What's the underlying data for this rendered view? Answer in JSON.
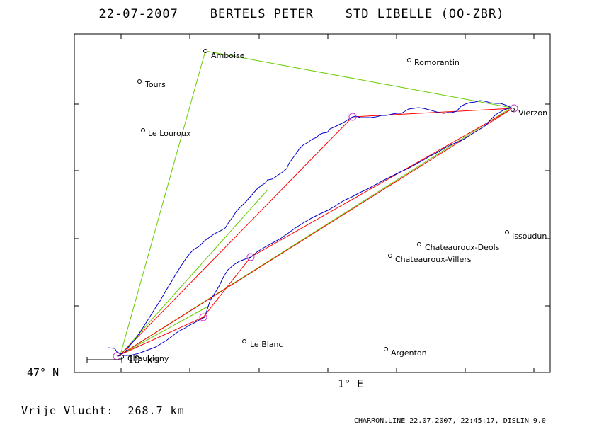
{
  "title": "22-07-2007    BERTELS PETER    STD LIBELLE (OO-ZBR)",
  "x_axis_label": "1° E",
  "y_axis_label": "47° N",
  "scale_label": "10 km",
  "distance_label": "Vrije Vlucht:  268.7 km",
  "footer": "CHARRON.LINE 22.07.2007, 22:45:17, DISLIN 9.0",
  "colors": {
    "track": "#0000cc",
    "task_line": "#ff0000",
    "triangle_line": "#66cc00",
    "turnpoint": "#cc33cc",
    "frame": "#000000"
  },
  "places": [
    {
      "name": "Amboise"
    },
    {
      "name": "Romorantin"
    },
    {
      "name": "Tours"
    },
    {
      "name": "Le Louroux"
    },
    {
      "name": "Vierzon"
    },
    {
      "name": "Issoudun"
    },
    {
      "name": "Chateauroux-Deols"
    },
    {
      "name": "Chateauroux-Villers"
    },
    {
      "name": "Le Blanc"
    },
    {
      "name": "Argenton"
    },
    {
      "name": "Chauvigny"
    }
  ]
}
